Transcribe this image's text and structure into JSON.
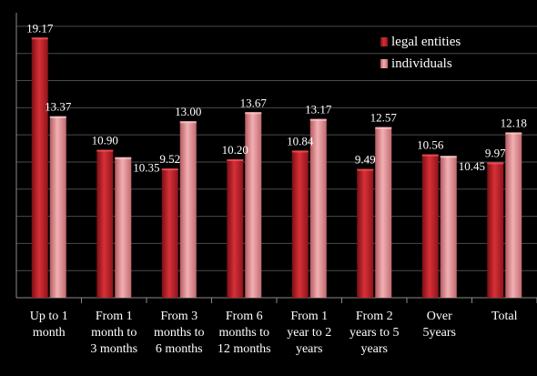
{
  "chart_data": {
    "type": "bar",
    "categories": [
      [
        "Up to 1",
        "month"
      ],
      [
        "From 1",
        "month to",
        "3 months"
      ],
      [
        "From 3",
        "months to",
        "6 months"
      ],
      [
        "From 6",
        "months to",
        "12 months"
      ],
      [
        "From 1",
        "year to 2",
        "years"
      ],
      [
        "From 2",
        "years to 5",
        "years"
      ],
      [
        "Over",
        "5years"
      ],
      [
        "Total"
      ]
    ],
    "series": [
      {
        "name": "legal entities",
        "color": "#c0262c",
        "values": [
          19.17,
          10.9,
          9.52,
          10.2,
          10.84,
          9.49,
          10.56,
          9.97
        ],
        "labels": [
          "19.17",
          "10.90",
          "9.52",
          "10.20",
          "10.84",
          "9.49",
          "10.56",
          "9.97"
        ]
      },
      {
        "name": "individuals",
        "color": "#e08a8e",
        "values": [
          13.37,
          10.35,
          13.0,
          13.67,
          13.17,
          12.57,
          10.45,
          12.18
        ],
        "labels": [
          "13.37",
          "10.35",
          "13.00",
          "13.67",
          "13.17",
          "12.57",
          "10.45",
          "12.18"
        ]
      }
    ],
    "title": "",
    "xlabel": "",
    "ylabel": "",
    "ylim": [
      0,
      21
    ],
    "grid": true,
    "legend_position": "top-right"
  }
}
